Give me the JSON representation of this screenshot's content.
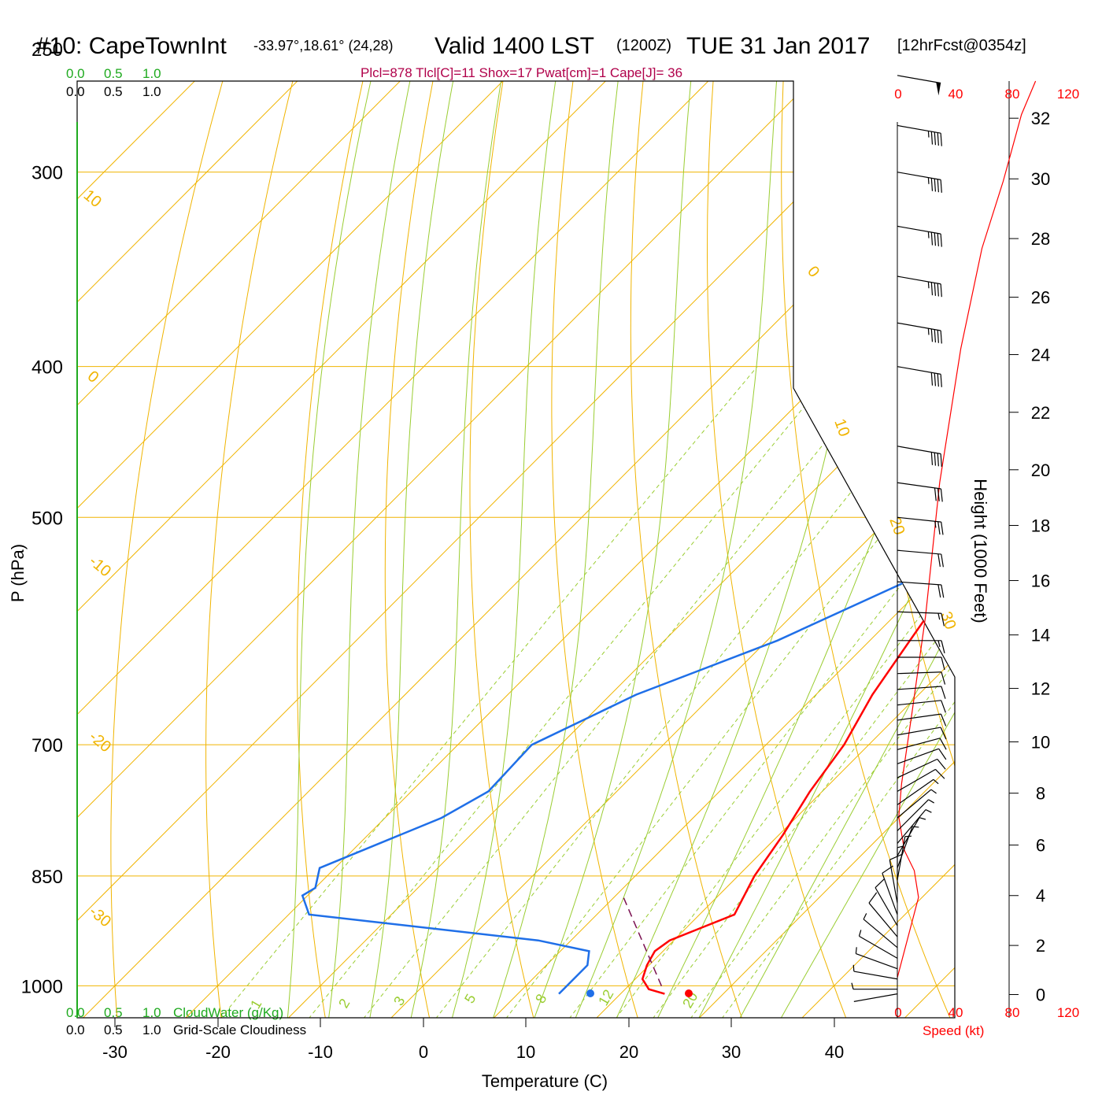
{
  "title": {
    "station": "#10: CapeTownInt",
    "coords": "-33.97°,18.61° (24,28)",
    "valid": "Valid 1400 LST",
    "utc": "(1200Z)",
    "date": "TUE 31 Jan 2017",
    "forecast": "[12hrFcst@0354z]"
  },
  "indices": "Plcl=878 Tlcl[C]=11 Shox=17 Pwat[cm]=1 Cape[J]= 36",
  "cloud_scale": {
    "values": [
      "0.0",
      "0.5",
      "1.0"
    ],
    "cloudwater_label": "CloudWater (g/Kg)",
    "cloudiness_label": "Grid-Scale Cloudiness"
  },
  "colors": {
    "temperature": "#ff0000",
    "dewpoint": "#1f6fe8",
    "isotherm": "#f0b400",
    "dry_adiabat": "#9acd32",
    "mixing_ratio": "#9acd32",
    "cloud_axis": "#1faa1f",
    "parcel": "#7a1050"
  },
  "chart_data": {
    "type": "line",
    "xlabel": "Temperature (C)",
    "ylabel": "P (hPa)",
    "x_ticks": [
      "-30",
      "-20",
      "-10",
      "0",
      "10",
      "20",
      "30",
      "40"
    ],
    "pressure_ticks": [
      "250",
      "300",
      "400",
      "500",
      "700",
      "850",
      "1000"
    ],
    "pressure_values": [
      250,
      300,
      400,
      500,
      700,
      850,
      1000
    ],
    "xlim": [
      -34,
      46
    ],
    "ylim": [
      1050,
      250
    ],
    "isotherm_labels": [
      "10",
      "0",
      "-10",
      "-20",
      "-30",
      "0",
      "10",
      "20",
      "30"
    ],
    "mixing_ratio_labels": [
      "1",
      "2",
      "3",
      "5",
      "8",
      "12",
      "20"
    ],
    "series": [
      {
        "name": "Temperature",
        "points": [
          [
            24.3,
            1012
          ],
          [
            22.3,
            1005
          ],
          [
            20.7,
            990
          ],
          [
            19.8,
            970
          ],
          [
            19.2,
            950
          ],
          [
            19.6,
            935
          ],
          [
            23.4,
            900
          ],
          [
            21.6,
            850
          ],
          [
            20.4,
            800
          ],
          [
            18.8,
            750
          ],
          [
            17.6,
            700
          ],
          [
            15.5,
            650
          ],
          [
            13.9,
            600
          ],
          [
            12.2,
            550
          ],
          [
            10.5,
            500
          ],
          [
            9.3,
            450
          ],
          [
            6.5,
            400
          ],
          [
            3.5,
            350
          ],
          [
            0.8,
            300
          ],
          [
            -2.3,
            260
          ]
        ]
      },
      {
        "name": "Dewpoint",
        "points": [
          [
            14.0,
            1012
          ],
          [
            14.0,
            1005
          ],
          [
            14.0,
            970
          ],
          [
            12.8,
            950
          ],
          [
            6.8,
            935
          ],
          [
            -18,
            900
          ],
          [
            -20.5,
            875
          ],
          [
            -20.0,
            865
          ],
          [
            -21.5,
            840
          ],
          [
            -14.5,
            780
          ],
          [
            -12.5,
            750
          ],
          [
            -12.8,
            700
          ],
          [
            -7.5,
            650
          ],
          [
            1.0,
            600
          ],
          [
            7.8,
            550
          ],
          [
            4.5,
            500
          ],
          [
            -0.4,
            460
          ],
          [
            -5.3,
            425
          ],
          [
            -3.8,
            400
          ],
          [
            -4.3,
            375
          ],
          [
            -10.0,
            330
          ],
          [
            -12.5,
            300
          ],
          [
            -13.0,
            260
          ]
        ]
      }
    ],
    "surface_temperature": 24.3,
    "surface_dewpoint": 14.0,
    "lcl": {
      "pressure": 878,
      "temperature": 11
    },
    "wind_barbs": [
      {
        "p": 1012,
        "dir": 80,
        "spd": 4
      },
      {
        "p": 1005,
        "dir": 90,
        "spd": 5
      },
      {
        "p": 990,
        "dir": 100,
        "spd": 6
      },
      {
        "p": 975,
        "dir": 110,
        "spd": 6
      },
      {
        "p": 960,
        "dir": 120,
        "spd": 8
      },
      {
        "p": 945,
        "dir": 130,
        "spd": 9
      },
      {
        "p": 930,
        "dir": 140,
        "spd": 10
      },
      {
        "p": 915,
        "dir": 150,
        "spd": 10
      },
      {
        "p": 900,
        "dir": 160,
        "spd": 10
      },
      {
        "p": 885,
        "dir": 170,
        "spd": 10
      },
      {
        "p": 870,
        "dir": 180,
        "spd": 9
      },
      {
        "p": 855,
        "dir": 190,
        "spd": 8
      },
      {
        "p": 840,
        "dir": 200,
        "spd": 8
      },
      {
        "p": 825,
        "dir": 210,
        "spd": 8
      },
      {
        "p": 810,
        "dir": 220,
        "spd": 8
      },
      {
        "p": 795,
        "dir": 225,
        "spd": 8
      },
      {
        "p": 780,
        "dir": 230,
        "spd": 8
      },
      {
        "p": 765,
        "dir": 235,
        "spd": 9
      },
      {
        "p": 750,
        "dir": 240,
        "spd": 10
      },
      {
        "p": 735,
        "dir": 245,
        "spd": 10
      },
      {
        "p": 720,
        "dir": 250,
        "spd": 10
      },
      {
        "p": 705,
        "dir": 255,
        "spd": 10
      },
      {
        "p": 690,
        "dir": 260,
        "spd": 10
      },
      {
        "p": 675,
        "dir": 262,
        "spd": 10
      },
      {
        "p": 660,
        "dir": 264,
        "spd": 10
      },
      {
        "p": 645,
        "dir": 266,
        "spd": 10
      },
      {
        "p": 630,
        "dir": 268,
        "spd": 10
      },
      {
        "p": 615,
        "dir": 270,
        "spd": 12
      },
      {
        "p": 600,
        "dir": 270,
        "spd": 15
      },
      {
        "p": 575,
        "dir": 272,
        "spd": 15
      },
      {
        "p": 550,
        "dir": 274,
        "spd": 20
      },
      {
        "p": 525,
        "dir": 275,
        "spd": 20
      },
      {
        "p": 500,
        "dir": 276,
        "spd": 25
      },
      {
        "p": 475,
        "dir": 278,
        "spd": 30
      },
      {
        "p": 450,
        "dir": 280,
        "spd": 40
      },
      {
        "p": 400,
        "dir": 280,
        "spd": 40
      },
      {
        "p": 375,
        "dir": 280,
        "spd": 45
      },
      {
        "p": 350,
        "dir": 280,
        "spd": 45
      },
      {
        "p": 325,
        "dir": 280,
        "spd": 45
      },
      {
        "p": 300,
        "dir": 280,
        "spd": 45
      },
      {
        "p": 280,
        "dir": 280,
        "spd": 45
      },
      {
        "p": 260,
        "dir": 280,
        "spd": 50
      }
    ],
    "wind_speed_axis": {
      "ticks": [
        "0",
        "40",
        "80",
        "120"
      ],
      "label": "Speed (kt)",
      "range": [
        0,
        120
      ]
    },
    "wind_speed_profile": [
      [
        0,
        6
      ],
      [
        15,
        18
      ],
      [
        12,
        22
      ],
      [
        5,
        25
      ],
      [
        1,
        30
      ],
      [
        3,
        35
      ],
      [
        10,
        45
      ],
      [
        20,
        60
      ],
      [
        30,
        80
      ],
      [
        45,
        100
      ],
      [
        60,
        115
      ],
      [
        75,
        125
      ],
      [
        88,
        135
      ],
      [
        98,
        140
      ]
    ],
    "height_axis": {
      "label": "Height (1000 Feet)",
      "ticks": [
        "0",
        "2",
        "4",
        "6",
        "8",
        "10",
        "12",
        "14",
        "16",
        "18",
        "20",
        "22",
        "24",
        "26",
        "28",
        "30",
        "32"
      ],
      "pressures": [
        1013,
        942,
        875,
        812,
        752,
        697,
        644,
        595,
        549,
        506,
        466,
        428,
        393,
        361,
        331,
        303,
        277
      ]
    }
  }
}
